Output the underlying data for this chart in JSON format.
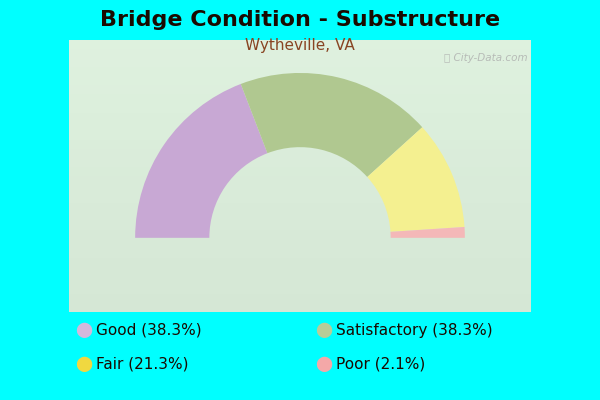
{
  "title": "Bridge Condition - Substructure",
  "subtitle": "Wytheville, VA",
  "background_color": "#00FFFF",
  "chart_bg_start": "#d8edd8",
  "chart_bg_end": "#f0faf0",
  "segments": [
    {
      "label": "Good (38.3%)",
      "value": 38.3,
      "color": "#c8a8d4",
      "legend_color": "#d4b8dc"
    },
    {
      "label": "Satisfactory (38.3%)",
      "value": 38.3,
      "color": "#b0c890",
      "legend_color": "#b8cc98"
    },
    {
      "label": "Fair (21.3%)",
      "value": 21.3,
      "color": "#f4f090",
      "legend_color": "#f0d840"
    },
    {
      "label": "Poor (2.1%)",
      "value": 2.1,
      "color": "#f4b8b8",
      "legend_color": "#f4a8a8"
    }
  ],
  "watermark": "ⓘ City-Data.com",
  "title_fontsize": 16,
  "subtitle_fontsize": 11,
  "legend_fontsize": 11,
  "title_color": "#1a0a00",
  "subtitle_color": "#884422",
  "legend_text_color": "#1a0a00",
  "outer_r": 1.0,
  "inner_r": 0.55
}
